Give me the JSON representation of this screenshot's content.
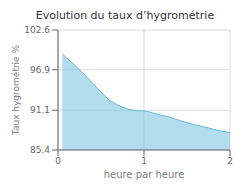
{
  "chart_data": {
    "type": "area",
    "title": "Evolution du taux d’hygrométrie",
    "xlabel": "heure par heure",
    "ylabel": "Taux hygrométrie %",
    "x": [
      0.05,
      0.1,
      0.2,
      0.3,
      0.4,
      0.5,
      0.6,
      0.7,
      0.8,
      0.9,
      1.0,
      1.05,
      1.1,
      1.2,
      1.3,
      1.4,
      1.5,
      1.6,
      1.7,
      1.8,
      1.9,
      2.0
    ],
    "values": [
      99.2,
      98.6,
      97.5,
      96.3,
      95.0,
      93.7,
      92.5,
      91.8,
      91.3,
      91.05,
      91.0,
      90.9,
      90.7,
      90.4,
      90.1,
      89.7,
      89.3,
      89.0,
      88.7,
      88.4,
      88.1,
      87.9
    ],
    "color": "#66bbdd",
    "xlim": [
      0,
      2
    ],
    "ylim": [
      85.4,
      102.6
    ],
    "xticks": [
      0,
      1,
      2
    ],
    "yticks": [
      85.4,
      91.1,
      96.9,
      102.6
    ],
    "grid": true
  }
}
